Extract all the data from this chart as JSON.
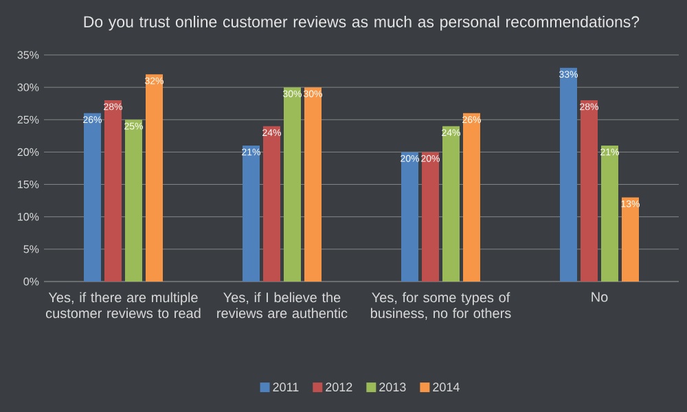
{
  "chart_data": {
    "type": "bar",
    "title": "Do you trust online customer reviews as much as personal recommendations?",
    "categories": [
      "Yes, if there are multiple customer reviews to read",
      "Yes, if I believe the reviews are authentic",
      "Yes, for some types of business, no for others",
      "No"
    ],
    "series": [
      {
        "name": "2011",
        "color": "#4f81bd",
        "values": [
          26,
          21,
          20,
          33
        ],
        "value_labels": [
          "26%",
          "21%",
          "20%",
          "33%"
        ]
      },
      {
        "name": "2012",
        "color": "#c0504d",
        "values": [
          28,
          24,
          20,
          28
        ],
        "value_labels": [
          "28%",
          "24%",
          "20%",
          "28%"
        ]
      },
      {
        "name": "2013",
        "color": "#9bbb59",
        "values": [
          25,
          30,
          24,
          21
        ],
        "value_labels": [
          "25%",
          "30%",
          "24%",
          "21%"
        ]
      },
      {
        "name": "2014",
        "color": "#f79646",
        "values": [
          32,
          30,
          26,
          13
        ],
        "value_labels": [
          "32%",
          "30%",
          "26%",
          "13%"
        ]
      }
    ],
    "ylim": [
      0,
      35
    ],
    "yticks": [
      {
        "value": 0,
        "label": "0%"
      },
      {
        "value": 5,
        "label": "5%"
      },
      {
        "value": 10,
        "label": "10%"
      },
      {
        "value": 15,
        "label": "15%"
      },
      {
        "value": 20,
        "label": "20%"
      },
      {
        "value": 25,
        "label": "25%"
      },
      {
        "value": 30,
        "label": "30%"
      },
      {
        "value": 35,
        "label": "35%"
      }
    ],
    "grid": "y",
    "legend": "bottom"
  }
}
